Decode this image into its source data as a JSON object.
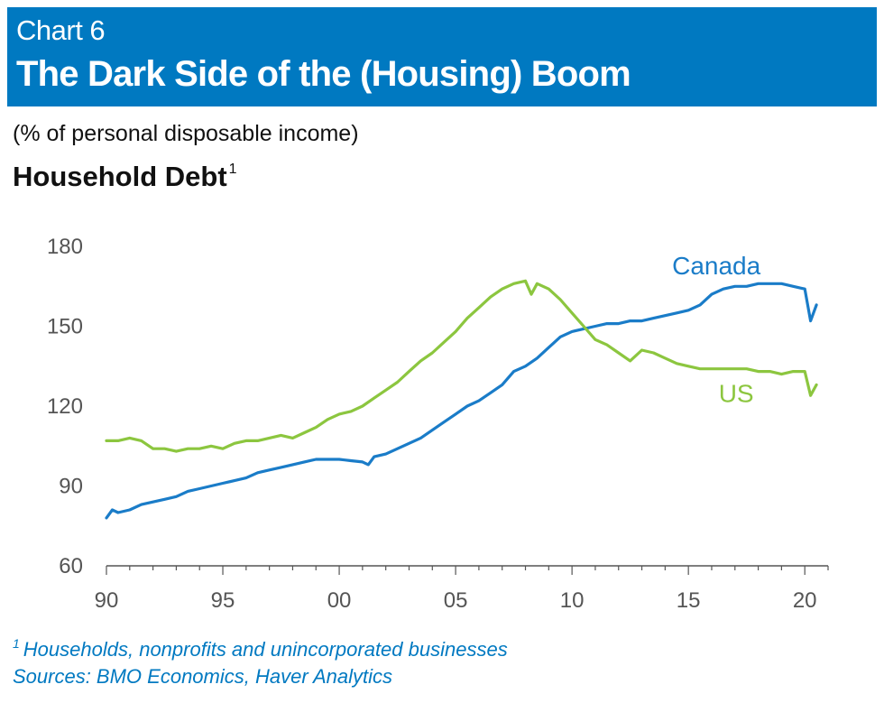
{
  "header": {
    "chart_number": "Chart 6",
    "title": "The Dark Side of the (Housing) Boom"
  },
  "subtitle": "(% of personal disposable income)",
  "series_title": "Household Debt",
  "series_title_footnote_mark": "1",
  "footnotes": {
    "mark": "1",
    "note": "Households, nonprofits and unincorporated businesses",
    "sources": "Sources: BMO Economics, Haver Analytics"
  },
  "colors": {
    "header_bg": "#0079c1",
    "canada": "#1a7cc8",
    "us": "#8cc63f",
    "axis": "#555555",
    "tick_text": "#555555"
  },
  "chart_data": {
    "type": "line",
    "title": "Household Debt",
    "ylabel": "(% of personal disposable income)",
    "xlabel": "",
    "xlim": [
      1990,
      2021
    ],
    "ylim": [
      60,
      180
    ],
    "yticks": [
      60,
      90,
      120,
      150,
      180
    ],
    "xtick_values": [
      1990,
      1995,
      2000,
      2005,
      2010,
      2015,
      2020
    ],
    "xtick_labels": [
      "90",
      "95",
      "00",
      "05",
      "10",
      "15",
      "20"
    ],
    "grid": false,
    "series": [
      {
        "name": "Canada",
        "color": "#1a7cc8",
        "x": [
          1990,
          1990.25,
          1990.5,
          1991,
          1991.5,
          1992,
          1992.5,
          1993,
          1993.5,
          1994,
          1994.5,
          1995,
          1995.5,
          1996,
          1996.5,
          1997,
          1997.5,
          1998,
          1998.5,
          1999,
          1999.5,
          2000,
          2000.5,
          2001,
          2001.25,
          2001.5,
          2002,
          2002.5,
          2003,
          2003.5,
          2004,
          2004.5,
          2005,
          2005.5,
          2006,
          2006.5,
          2007,
          2007.5,
          2008,
          2008.5,
          2009,
          2009.5,
          2010,
          2010.5,
          2011,
          2011.5,
          2012,
          2012.5,
          2013,
          2013.5,
          2014,
          2014.5,
          2015,
          2015.5,
          2016,
          2016.5,
          2017,
          2017.5,
          2018,
          2018.5,
          2019,
          2019.5,
          2020,
          2020.25,
          2020.5
        ],
        "values": [
          78,
          81,
          80,
          81,
          83,
          84,
          85,
          86,
          88,
          89,
          90,
          91,
          92,
          93,
          95,
          96,
          97,
          98,
          99,
          100,
          100,
          100,
          99.5,
          99,
          98,
          101,
          102,
          104,
          106,
          108,
          111,
          114,
          117,
          120,
          122,
          125,
          128,
          133,
          135,
          138,
          142,
          146,
          148,
          149,
          150,
          151,
          151,
          152,
          152,
          153,
          154,
          155,
          156,
          158,
          162,
          164,
          165,
          165,
          166,
          166,
          166,
          165,
          164,
          152,
          158
        ]
      },
      {
        "name": "US",
        "color": "#8cc63f",
        "x": [
          1990,
          1990.5,
          1991,
          1991.5,
          1992,
          1992.5,
          1993,
          1993.5,
          1994,
          1994.5,
          1995,
          1995.5,
          1996,
          1996.5,
          1997,
          1997.5,
          1998,
          1998.5,
          1999,
          1999.5,
          2000,
          2000.5,
          2001,
          2001.5,
          2002,
          2002.5,
          2003,
          2003.5,
          2004,
          2004.5,
          2005,
          2005.5,
          2006,
          2006.5,
          2007,
          2007.5,
          2008,
          2008.25,
          2008.5,
          2009,
          2009.5,
          2010,
          2010.5,
          2011,
          2011.5,
          2012,
          2012.5,
          2013,
          2013.5,
          2014,
          2014.5,
          2015,
          2015.5,
          2016,
          2016.5,
          2017,
          2017.5,
          2018,
          2018.5,
          2019,
          2019.5,
          2020,
          2020.25,
          2020.5
        ],
        "values": [
          107,
          107,
          108,
          107,
          104,
          104,
          103,
          104,
          104,
          105,
          104,
          106,
          107,
          107,
          108,
          109,
          108,
          110,
          112,
          115,
          117,
          118,
          120,
          123,
          126,
          129,
          133,
          137,
          140,
          144,
          148,
          153,
          157,
          161,
          164,
          166,
          167,
          162,
          166,
          164,
          160,
          155,
          150,
          145,
          143,
          140,
          137,
          141,
          140,
          138,
          136,
          135,
          134,
          134,
          134,
          134,
          134,
          133,
          133,
          132,
          133,
          133,
          124,
          128
        ]
      }
    ],
    "annotations": [
      {
        "text": "Canada",
        "series": "Canada"
      },
      {
        "text": "US",
        "series": "US"
      }
    ]
  }
}
